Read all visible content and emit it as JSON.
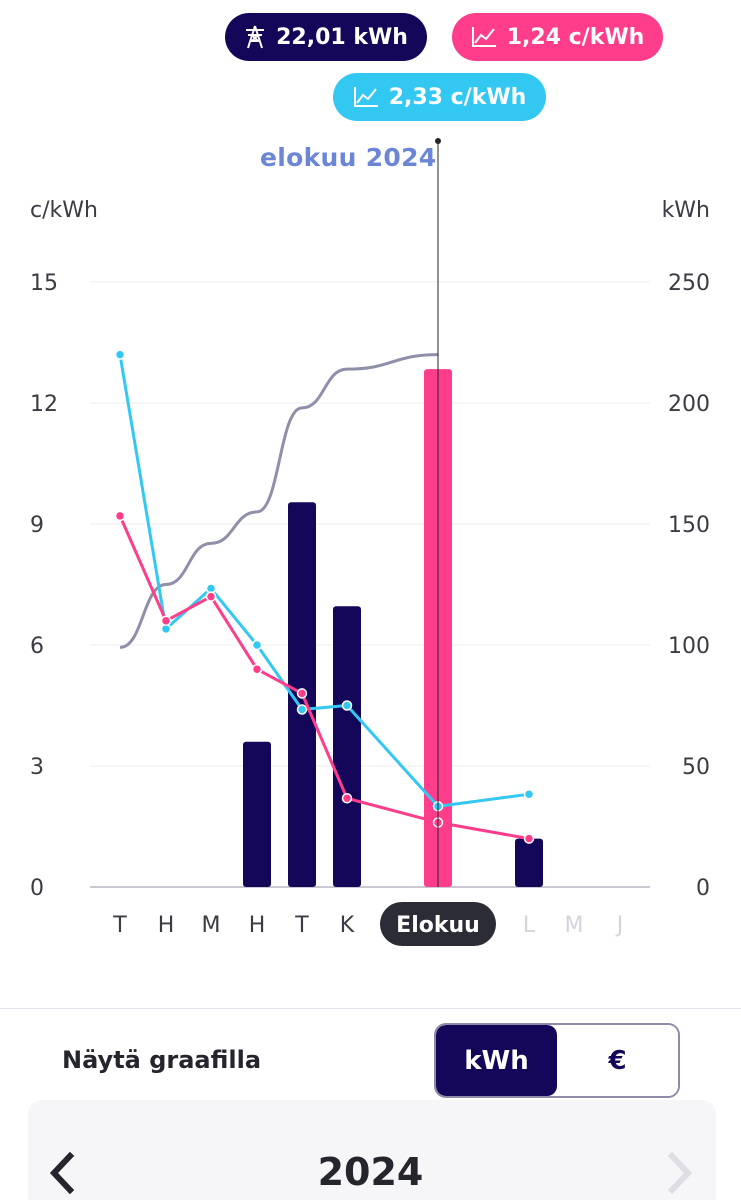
{
  "summary": {
    "energy": "22,01 kWh",
    "spot_price": "1,24 c/kWh",
    "avg_price": "2,33 c/kWh"
  },
  "period_title": "elokuu 2024",
  "chart_data": {
    "type": "bar",
    "categories": [
      "T",
      "H",
      "M",
      "H",
      "T",
      "K",
      "Elokuu",
      "L",
      "M",
      "J"
    ],
    "selected_index": 6,
    "left_axis": {
      "label": "c/kWh",
      "ticks": [
        "15",
        "12",
        "9",
        "6",
        "3",
        "0"
      ],
      "range": [
        0,
        15
      ]
    },
    "right_axis": {
      "label": "kWh",
      "ticks": [
        "250",
        "200",
        "150",
        "100",
        "50",
        "0"
      ],
      "range": [
        0,
        250
      ]
    },
    "bars": [
      null,
      null,
      null,
      60,
      159,
      116,
      214,
      20,
      null,
      null
    ],
    "price_line_blue": [
      13.2,
      6.4,
      7.4,
      6.0,
      4.4,
      4.5,
      2.0,
      2.3,
      null,
      null
    ],
    "price_line_pink": [
      9.2,
      6.6,
      7.2,
      5.4,
      4.8,
      2.2,
      1.6,
      1.2,
      null,
      null
    ],
    "grey_line": [
      99,
      125,
      142,
      155,
      198,
      214,
      220,
      null,
      null,
      null
    ],
    "colors": {
      "bar": "#14075a",
      "selected_bar": "#ff3d8b",
      "blue_line": "#33c8f2",
      "pink_line": "#ff3d8b",
      "grey_line": "#8f8faa"
    },
    "grid": true
  },
  "controls": {
    "show_on_chart": "Näytä graafilla",
    "kwh": "kWh",
    "eur": "€"
  },
  "year_nav": {
    "year": "2024",
    "prev_icon": "chevron-left-icon",
    "next_icon": "chevron-right-icon"
  }
}
